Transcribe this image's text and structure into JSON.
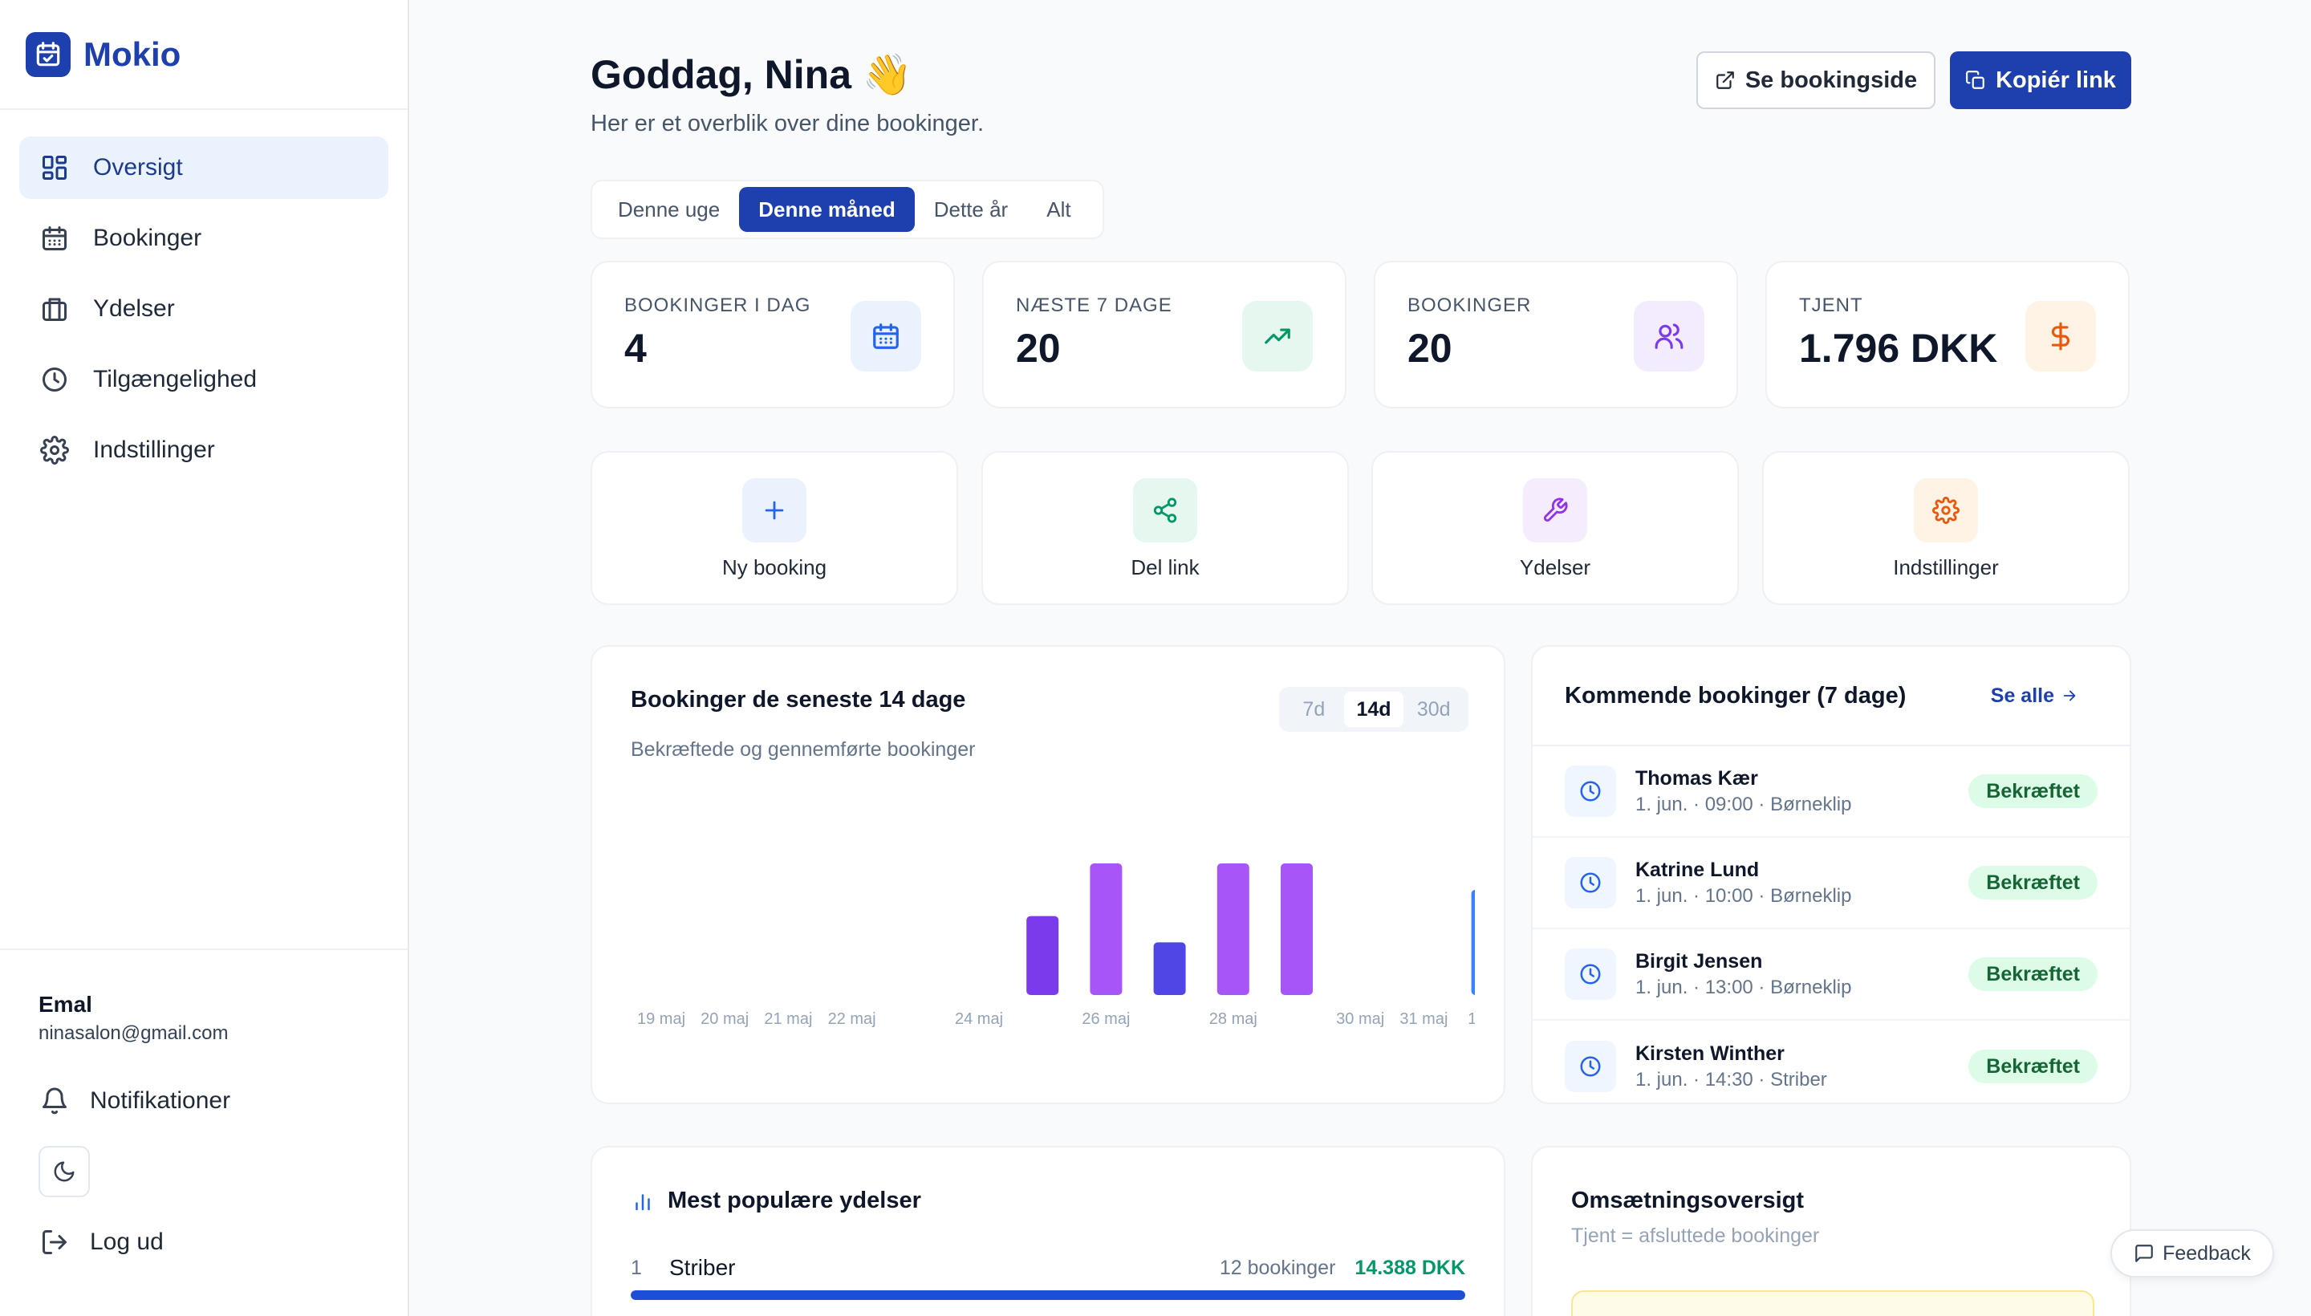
{
  "brand": {
    "name": "Mokio",
    "icon": "calendar-check-icon"
  },
  "sidebar": {
    "items": [
      {
        "label": "Oversigt",
        "icon": "grid-icon",
        "active": true
      },
      {
        "label": "Bookinger",
        "icon": "calendar-icon"
      },
      {
        "label": "Ydelser",
        "icon": "briefcase-icon"
      },
      {
        "label": "Tilgængelighed",
        "icon": "clock-icon"
      },
      {
        "label": "Indstillinger",
        "icon": "gear-icon"
      }
    ],
    "user": {
      "name": "Emal",
      "email": "ninasalon@gmail.com"
    },
    "notifications_label": "Notifikationer",
    "logout_label": "Log ud"
  },
  "header": {
    "greeting": "Goddag, Nina 👋",
    "subtitle": "Her er et overblik over dine bookinger.",
    "view_booking_label": "Se bookingside",
    "copy_link_label": "Kopiér link"
  },
  "periods": [
    "Denne uge",
    "Denne måned",
    "Dette år",
    "Alt"
  ],
  "active_period": "Denne måned",
  "stats": [
    {
      "label": "BOOKINGER I DAG",
      "value": "4",
      "icon": "calendar-icon",
      "color": "#2563eb"
    },
    {
      "label": "NÆSTE 7 DAGE",
      "value": "20",
      "icon": "trending-up-icon",
      "color": "#059669"
    },
    {
      "label": "BOOKINGER",
      "value": "20",
      "icon": "users-icon",
      "color": "#7c3aed"
    },
    {
      "label": "TJENT",
      "value": "1.796 DKK",
      "icon": "dollar-icon",
      "color": "#ea580c"
    }
  ],
  "quick_actions": [
    {
      "label": "Ny booking",
      "icon": "plus-icon",
      "color": "#2563eb"
    },
    {
      "label": "Del link",
      "icon": "share-icon",
      "color": "#059669"
    },
    {
      "label": "Ydelser",
      "icon": "wrench-icon",
      "color": "#9333ea"
    },
    {
      "label": "Indstillinger",
      "icon": "gear-icon",
      "color": "#ea580c"
    }
  ],
  "chart": {
    "title": "Bookinger de seneste 14 dage",
    "subtitle": "Bekræftede og gennemførte bookinger",
    "ranges": [
      "7d",
      "14d",
      "30d"
    ],
    "active_range": "14d"
  },
  "chart_data": {
    "type": "bar",
    "categories": [
      "19 maj",
      "20 maj",
      "21 maj",
      "22 maj",
      "23 maj",
      "24 maj",
      "25 maj",
      "26 maj",
      "27 maj",
      "28 maj",
      "29 maj",
      "30 maj",
      "31 maj",
      "1 jun."
    ],
    "tick_labels": [
      "19 maj",
      "20 maj",
      "21 maj",
      "22 maj",
      "",
      "24 maj",
      "",
      "26 maj",
      "",
      "28 maj",
      "",
      "30 maj",
      "31 maj",
      "1 jun."
    ],
    "values": [
      0,
      0,
      0,
      0,
      0,
      0,
      3,
      5,
      2,
      5,
      5,
      0,
      0,
      4
    ],
    "colors": [
      "#7c3aed",
      "#7c3aed",
      "#7c3aed",
      "#7c3aed",
      "#7c3aed",
      "#7c3aed",
      "#7c3aed",
      "#a855f7",
      "#4f46e5",
      "#a855f7",
      "#a855f7",
      "#7c3aed",
      "#7c3aed",
      "#3b82f6"
    ],
    "ylim": [
      0,
      5
    ],
    "grid": false
  },
  "upcoming": {
    "title": "Kommende bookinger (7 dage)",
    "see_all_label": "Se alle",
    "items": [
      {
        "name": "Thomas Kær",
        "meta": "1. jun. · 09:00 · Børneklip",
        "status": "Bekræftet"
      },
      {
        "name": "Katrine Lund",
        "meta": "1. jun. · 10:00 · Børneklip",
        "status": "Bekræftet"
      },
      {
        "name": "Birgit Jensen",
        "meta": "1. jun. · 13:00 · Børneklip",
        "status": "Bekræftet"
      },
      {
        "name": "Kirsten Winther",
        "meta": "1. jun. · 14:30 · Striber",
        "status": "Bekræftet"
      }
    ]
  },
  "popular": {
    "title": "Mest populære ydelser",
    "items": [
      {
        "rank": "1",
        "name": "Striber",
        "count": "12 bookinger",
        "amount": "14.388 DKK",
        "share": 1.0
      }
    ]
  },
  "revenue": {
    "title": "Omsætningsoversigt",
    "subtitle": "Tjent = afsluttede bookinger"
  },
  "feedback_label": "Feedback"
}
